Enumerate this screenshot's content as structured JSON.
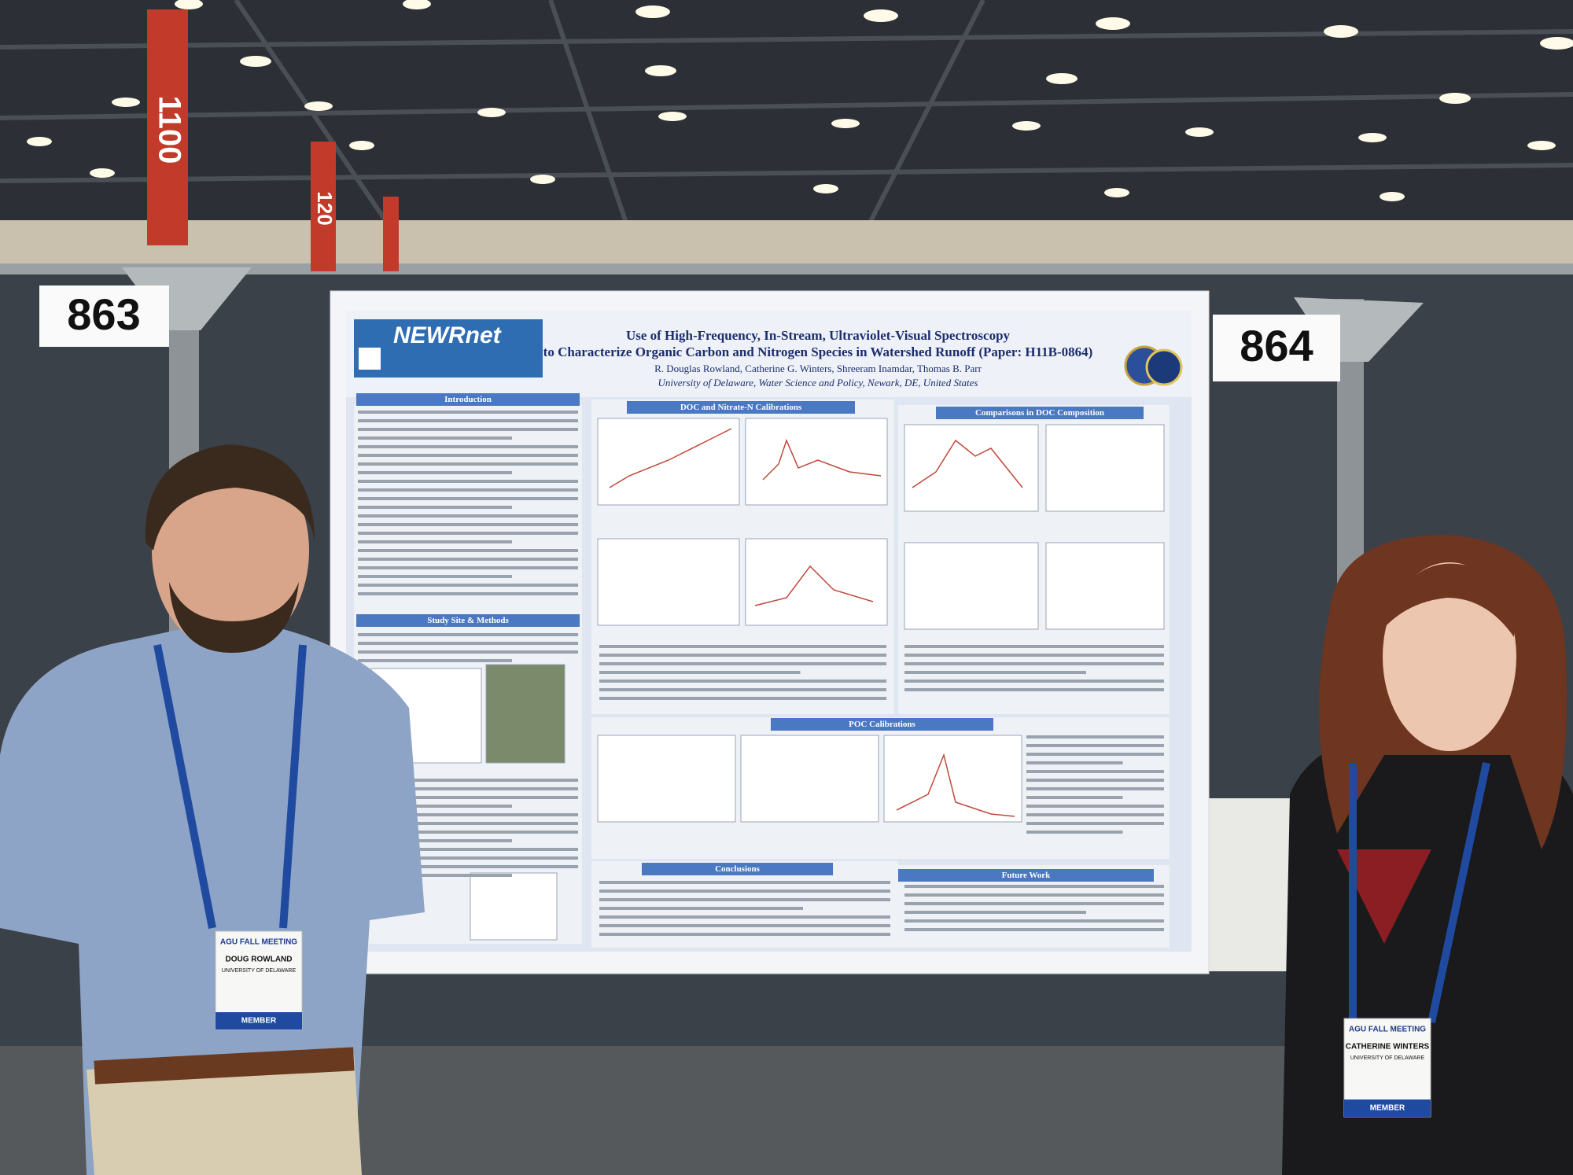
{
  "booths": [
    "863",
    "864"
  ],
  "hall_signs": [
    "1100",
    "120"
  ],
  "poster": {
    "logo": "NEWRnet",
    "title_line1": "Use of High-Frequency, In-Stream, Ultraviolet-Visual Spectroscopy",
    "title_line2": "to Characterize Organic Carbon and Nitrogen Species in Watershed Runoff (Paper: H11B-0864)",
    "authors": "R. Douglas Rowland, Catherine G. Winters, Shreeram Inamdar, Thomas B. Parr",
    "affiliation": "University of Delaware, Water Science and Policy, Newark, DE, United States",
    "sections": [
      "Introduction",
      "DOC and Nitrate-N Calibrations",
      "Comparisons in DOC Composition",
      "Study Site & Methods",
      "POC Calibrations",
      "Conclusions",
      "Future Work"
    ]
  },
  "badges": [
    {
      "event": "AGU FALL MEETING",
      "name": "DOUG ROWLAND",
      "org": "UNIVERSITY OF DELAWARE",
      "type": "MEMBER"
    },
    {
      "event": "AGU FALL MEETING",
      "name": "CATHERINE WINTERS",
      "org": "UNIVERSITY OF DELAWARE",
      "type": "MEMBER"
    }
  ]
}
